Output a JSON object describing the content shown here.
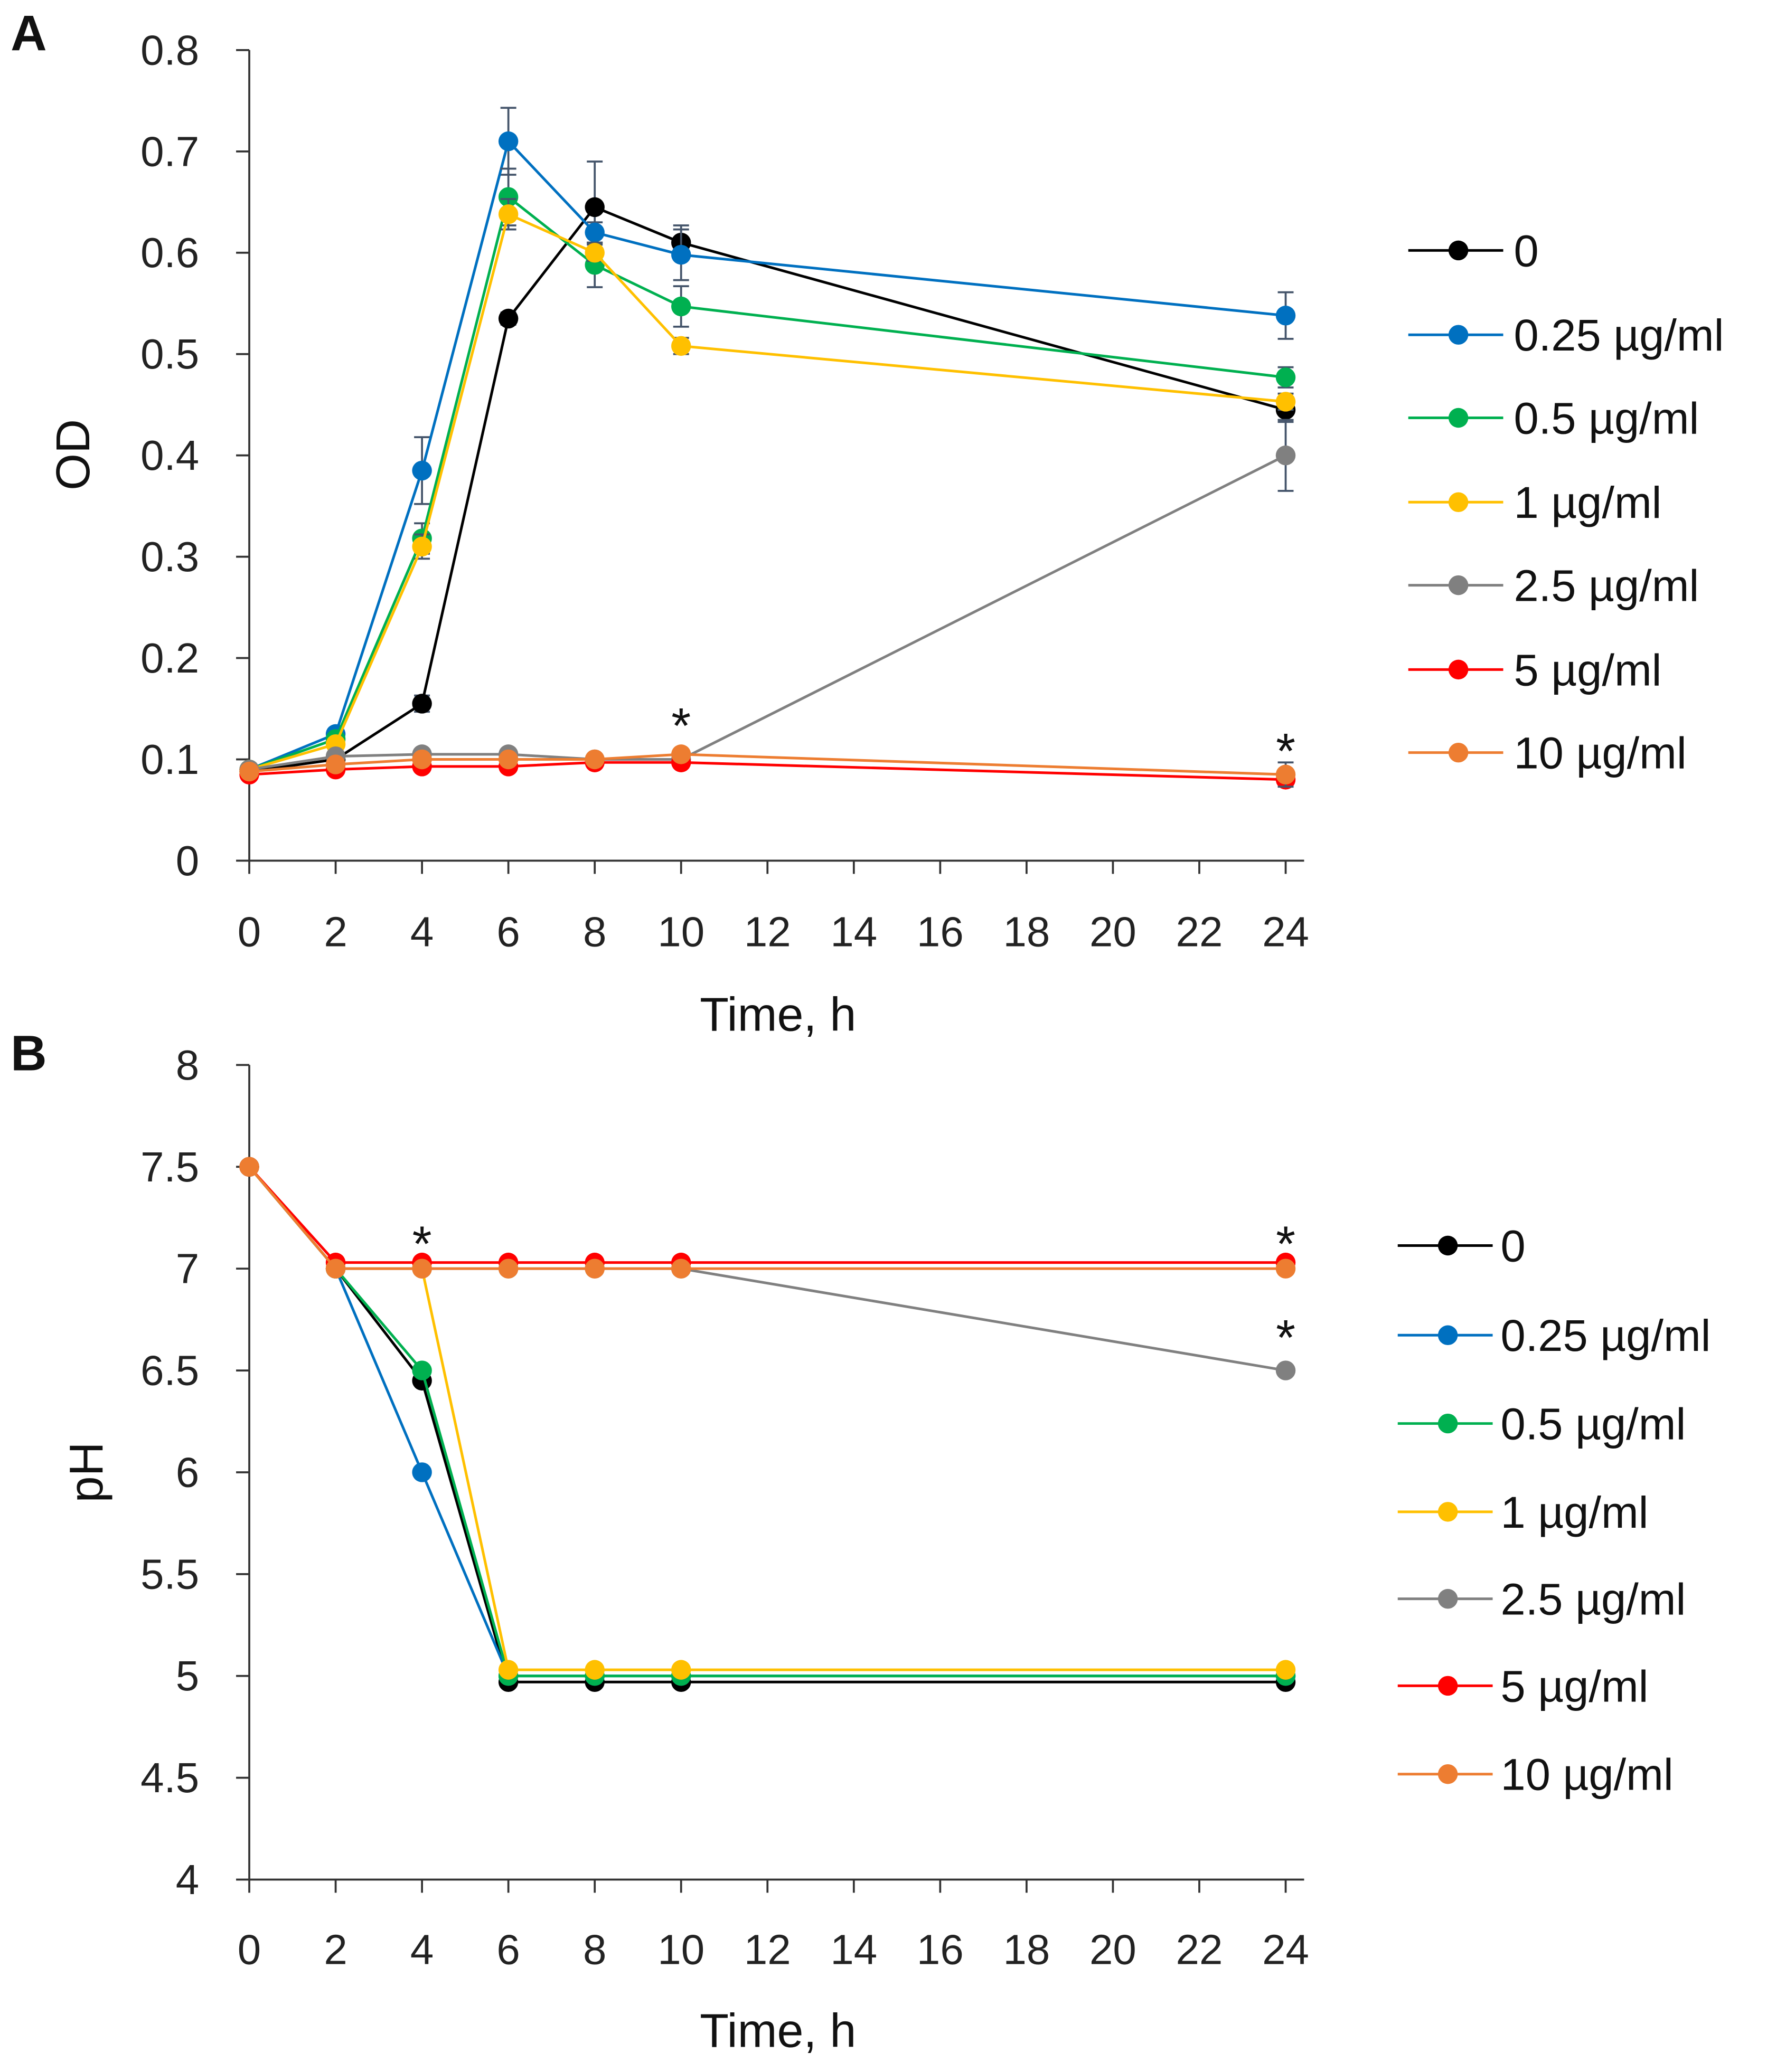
{
  "chart_data": [
    {
      "type": "line",
      "panel_label": "A",
      "xlabel": "Time, h",
      "ylabel": "OD",
      "xlim": [
        0,
        24
      ],
      "ylim": [
        0,
        0.8
      ],
      "xticks": [
        "0",
        "2",
        "4",
        "6",
        "8",
        "10",
        "12",
        "14",
        "16",
        "18",
        "20",
        "22",
        "24"
      ],
      "yticks": [
        "0",
        "0.1",
        "0.2",
        "0.3",
        "0.4",
        "0.5",
        "0.6",
        "0.7",
        "0.8"
      ],
      "grid": false,
      "legend_position": "right",
      "x": [
        0,
        2,
        4,
        6,
        8,
        10,
        24
      ],
      "series": [
        {
          "name": "0",
          "color": "#000000",
          "values": [
            0.088,
            0.1,
            0.155,
            0.535,
            0.645,
            0.61,
            0.445
          ],
          "errors": [
            0.003,
            0.003,
            0.008,
            0.006,
            0.045,
            0.017,
            0.012
          ]
        },
        {
          "name": "0.25 µg/ml",
          "color": "#0070C0",
          "values": [
            0.09,
            0.125,
            0.385,
            0.71,
            0.62,
            0.598,
            0.538
          ],
          "errors": [
            0.003,
            0.005,
            0.033,
            0.033,
            0.01,
            0.025,
            0.023
          ]
        },
        {
          "name": "0.5 µg/ml",
          "color": "#00B050",
          "values": [
            0.09,
            0.12,
            0.318,
            0.655,
            0.588,
            0.547,
            0.477
          ],
          "errors": [
            0.003,
            0.004,
            0.015,
            0.028,
            0.022,
            0.02,
            0.01
          ]
        },
        {
          "name": "1 µg/ml",
          "color": "#FFC000",
          "values": [
            0.09,
            0.115,
            0.31,
            0.638,
            0.6,
            0.508,
            0.453
          ],
          "errors": [
            0.003,
            0.004,
            0.012,
            0.015,
            0.008,
            0.008,
            0.008
          ]
        },
        {
          "name": "2.5 µg/ml",
          "color": "#808080",
          "values": [
            0.09,
            0.103,
            0.105,
            0.105,
            0.1,
            0.1,
            0.4
          ],
          "errors": [
            0.003,
            0.003,
            0.004,
            0.004,
            0.004,
            0.004,
            0.035
          ]
        },
        {
          "name": "5 µg/ml",
          "color": "#FF0000",
          "values": [
            0.085,
            0.09,
            0.093,
            0.093,
            0.097,
            0.097,
            0.08
          ],
          "errors": [
            0.003,
            0.003,
            0.003,
            0.003,
            0.005,
            0.005,
            0.004
          ]
        },
        {
          "name": "10 µg/ml",
          "color": "#ED7D31",
          "values": [
            0.088,
            0.095,
            0.1,
            0.1,
            0.1,
            0.105,
            0.085
          ],
          "errors": [
            0.003,
            0.003,
            0.003,
            0.003,
            0.004,
            0.004,
            0.012
          ]
        }
      ],
      "annotations": [
        {
          "text": "*",
          "x": 10,
          "y": 0.145
        },
        {
          "text": "*",
          "x": 24,
          "y": 0.12
        }
      ]
    },
    {
      "type": "line",
      "panel_label": "B",
      "xlabel": "Time, h",
      "ylabel": "pH",
      "xlim": [
        0,
        24
      ],
      "ylim": [
        4,
        8
      ],
      "xticks": [
        "0",
        "2",
        "4",
        "6",
        "8",
        "10",
        "12",
        "14",
        "16",
        "18",
        "20",
        "22",
        "24"
      ],
      "yticks": [
        "4",
        "4.5",
        "5",
        "5.5",
        "6",
        "6.5",
        "7",
        "7.5",
        "8"
      ],
      "grid": false,
      "legend_position": "right",
      "x": [
        0,
        2,
        4,
        6,
        8,
        10,
        24
      ],
      "series": [
        {
          "name": "0",
          "color": "#000000",
          "values": [
            7.5,
            7.0,
            6.45,
            4.97,
            4.97,
            4.97,
            4.97
          ]
        },
        {
          "name": "0.25 µg/ml",
          "color": "#0070C0",
          "values": [
            7.5,
            7.0,
            6.0,
            5.0,
            5.0,
            5.0,
            5.0
          ]
        },
        {
          "name": "0.5 µg/ml",
          "color": "#00B050",
          "values": [
            7.5,
            7.0,
            6.5,
            5.0,
            5.0,
            5.0,
            5.0
          ]
        },
        {
          "name": "1 µg/ml",
          "color": "#FFC000",
          "values": [
            7.5,
            7.0,
            7.0,
            5.03,
            5.03,
            5.03,
            5.03
          ]
        },
        {
          "name": "2.5 µg/ml",
          "color": "#808080",
          "values": [
            7.5,
            7.0,
            7.0,
            7.0,
            7.0,
            7.0,
            6.5
          ]
        },
        {
          "name": "5 µg/ml",
          "color": "#FF0000",
          "values": [
            7.5,
            7.03,
            7.03,
            7.03,
            7.03,
            7.03,
            7.03
          ]
        },
        {
          "name": "10 µg/ml",
          "color": "#ED7D31",
          "values": [
            7.5,
            7.0,
            7.0,
            7.0,
            7.0,
            7.0,
            7.0
          ]
        }
      ],
      "annotations": [
        {
          "text": "*",
          "x": 4,
          "y": 7.18
        },
        {
          "text": "*",
          "x": 24,
          "y": 7.18
        },
        {
          "text": "*",
          "x": 24,
          "y": 6.72
        }
      ]
    }
  ]
}
